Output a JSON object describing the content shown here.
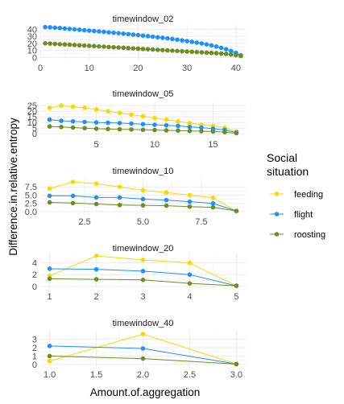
{
  "chart_data": {
    "type": "line",
    "xlabel": "Amount.of.aggregation",
    "ylabel": "Difference.in.relative.entropy",
    "legend": {
      "title": "Social\nsituation",
      "placement": "right",
      "entries": [
        {
          "name": "feeding",
          "color": "#FFD700"
        },
        {
          "name": "flight",
          "color": "#1E90FF"
        },
        {
          "name": "roosting",
          "color": "#6B8E23"
        }
      ]
    },
    "grid": true,
    "panels": [
      {
        "title": "timewindow_02",
        "xlim": [
          0,
          42
        ],
        "ylim": [
          -3,
          46
        ],
        "xticks": [
          0,
          10,
          20,
          30,
          40
        ],
        "yticks": [
          0,
          10,
          20,
          30,
          40
        ],
        "series": [
          {
            "name": "flight",
            "x": [
              1,
              2,
              3,
              4,
              5,
              6,
              7,
              8,
              9,
              10,
              11,
              12,
              13,
              14,
              15,
              16,
              17,
              18,
              19,
              20,
              21,
              22,
              23,
              24,
              25,
              26,
              27,
              28,
              29,
              30,
              31,
              32,
              33,
              34,
              35,
              36,
              37,
              38,
              39,
              40,
              41
            ],
            "y": [
              43.0,
              42.6,
              42.1,
              41.6,
              41.0,
              40.4,
              39.8,
              39.2,
              38.6,
              38.0,
              37.4,
              36.8,
              36.2,
              35.6,
              35.0,
              34.4,
              33.7,
              33.0,
              32.3,
              31.6,
              30.9,
              30.2,
              29.4,
              28.6,
              27.8,
              27.0,
              26.1,
              25.2,
              24.2,
              23.2,
              22.1,
              21.0,
              19.8,
              18.5,
              17.0,
              15.4,
              13.6,
              11.6,
              9.2,
              6.4,
              3.0
            ]
          },
          {
            "name": "roosting",
            "x": [
              1,
              2,
              3,
              4,
              5,
              6,
              7,
              8,
              9,
              10,
              11,
              12,
              13,
              14,
              15,
              16,
              17,
              18,
              19,
              20,
              21,
              22,
              23,
              24,
              25,
              26,
              27,
              28,
              29,
              30,
              31,
              32,
              33,
              34,
              35,
              36,
              37,
              38,
              39,
              40,
              41
            ],
            "y": [
              20.0,
              19.6,
              19.2,
              18.8,
              18.4,
              18.0,
              17.6,
              17.2,
              16.8,
              16.4,
              16.0,
              15.6,
              15.2,
              14.8,
              14.4,
              14.0,
              13.6,
              13.2,
              12.8,
              12.4,
              12.0,
              11.6,
              11.2,
              10.8,
              10.4,
              10.0,
              9.6,
              9.2,
              8.8,
              8.4,
              8.0,
              7.6,
              7.2,
              6.8,
              6.4,
              6.0,
              5.5,
              5.0,
              4.2,
              3.2,
              2.0
            ]
          }
        ]
      },
      {
        "title": "timewindow_05",
        "xlim": [
          0.2,
          17.8
        ],
        "ylim": [
          -2,
          28
        ],
        "xticks": [
          5,
          10,
          15
        ],
        "yticks": [
          0,
          5,
          10,
          15,
          20,
          25
        ],
        "series": [
          {
            "name": "feeding",
            "x": [
              1,
              2,
              3,
              4,
              5,
              6,
              7,
              8,
              9,
              10,
              11,
              12,
              13,
              14,
              15,
              16,
              17
            ],
            "y": [
              23.0,
              25.0,
              24.0,
              23.0,
              21.5,
              20.0,
              18.5,
              17.0,
              15.5,
              14.0,
              12.5,
              11.0,
              9.5,
              8.0,
              7.0,
              5.5,
              2.0
            ]
          },
          {
            "name": "flight",
            "x": [
              1,
              2,
              3,
              4,
              5,
              6,
              7,
              8,
              9,
              10,
              11,
              12,
              13,
              14,
              15,
              16,
              17
            ],
            "y": [
              12.5,
              11.5,
              11.0,
              10.5,
              10.0,
              9.8,
              9.5,
              9.0,
              8.5,
              8.0,
              7.5,
              7.0,
              6.0,
              5.5,
              4.5,
              3.5,
              1.0
            ]
          },
          {
            "name": "roosting",
            "x": [
              1,
              2,
              3,
              4,
              5,
              6,
              7,
              8,
              9,
              10,
              11,
              12,
              13,
              14,
              15,
              16,
              17
            ],
            "y": [
              6.5,
              6.0,
              5.5,
              5.0,
              4.5,
              4.2,
              4.0,
              3.8,
              3.5,
              3.3,
              3.0,
              2.8,
              2.5,
              2.3,
              2.0,
              1.5,
              0.5
            ]
          }
        ]
      },
      {
        "title": "timewindow_10",
        "xlim": [
          0.6,
          9.4
        ],
        "ylim": [
          -0.5,
          10
        ],
        "xticks": [
          2.5,
          5.0,
          7.5
        ],
        "xtick_labels": [
          "2.5",
          "5.0",
          "7.5"
        ],
        "yticks": [
          0,
          2.5,
          5,
          7.5
        ],
        "ytick_labels": [
          "0.0",
          "2.5",
          "5.0",
          "7.5"
        ],
        "series": [
          {
            "name": "feeding",
            "x": [
              1,
              2,
              3,
              4,
              5,
              6,
              7,
              8,
              9
            ],
            "y": [
              7.0,
              9.0,
              8.5,
              7.5,
              6.5,
              5.8,
              5.0,
              4.2,
              0.2
            ]
          },
          {
            "name": "flight",
            "x": [
              1,
              2,
              3,
              4,
              5,
              6,
              7,
              8,
              9
            ],
            "y": [
              4.8,
              4.8,
              4.3,
              4.3,
              3.8,
              3.5,
              3.0,
              2.5,
              0.2
            ]
          },
          {
            "name": "roosting",
            "x": [
              1,
              2,
              3,
              4,
              5,
              6,
              7,
              8,
              9
            ],
            "y": [
              2.8,
              2.6,
              2.3,
              2.0,
              1.9,
              1.8,
              1.5,
              1.3,
              0.2
            ]
          }
        ]
      },
      {
        "title": "timewindow_20",
        "xlim": [
          0.8,
          5.2
        ],
        "ylim": [
          -0.3,
          5.6
        ],
        "xticks": [
          1,
          2,
          3,
          4,
          5
        ],
        "yticks": [
          0,
          2,
          4
        ],
        "series": [
          {
            "name": "feeding",
            "x": [
              1,
              2,
              3,
              4,
              5
            ],
            "y": [
              1.8,
              5.2,
              4.5,
              4.0,
              0.1
            ]
          },
          {
            "name": "flight",
            "x": [
              1,
              2,
              3,
              4,
              5
            ],
            "y": [
              3.0,
              2.9,
              2.6,
              2.0,
              0.1
            ]
          },
          {
            "name": "roosting",
            "x": [
              1,
              2,
              3,
              4,
              5
            ],
            "y": [
              1.3,
              1.2,
              1.1,
              0.5,
              0.1
            ]
          }
        ]
      },
      {
        "title": "timewindow_40",
        "xlim": [
          0.9,
          3.1
        ],
        "ylim": [
          -0.2,
          4.0
        ],
        "xticks": [
          1.0,
          1.5,
          2.0,
          2.5,
          3.0
        ],
        "xtick_labels": [
          "1.0",
          "1.5",
          "2.0",
          "2.5",
          "3.0"
        ],
        "yticks": [
          0,
          1,
          2,
          3
        ],
        "series": [
          {
            "name": "feeding",
            "x": [
              1,
              2,
              3
            ],
            "y": [
              0.4,
              3.6,
              0.05
            ]
          },
          {
            "name": "flight",
            "x": [
              1,
              2,
              3
            ],
            "y": [
              2.2,
              1.9,
              0.05
            ]
          },
          {
            "name": "roosting",
            "x": [
              1,
              2,
              3
            ],
            "y": [
              1.0,
              0.7,
              0.05
            ]
          }
        ]
      }
    ]
  }
}
